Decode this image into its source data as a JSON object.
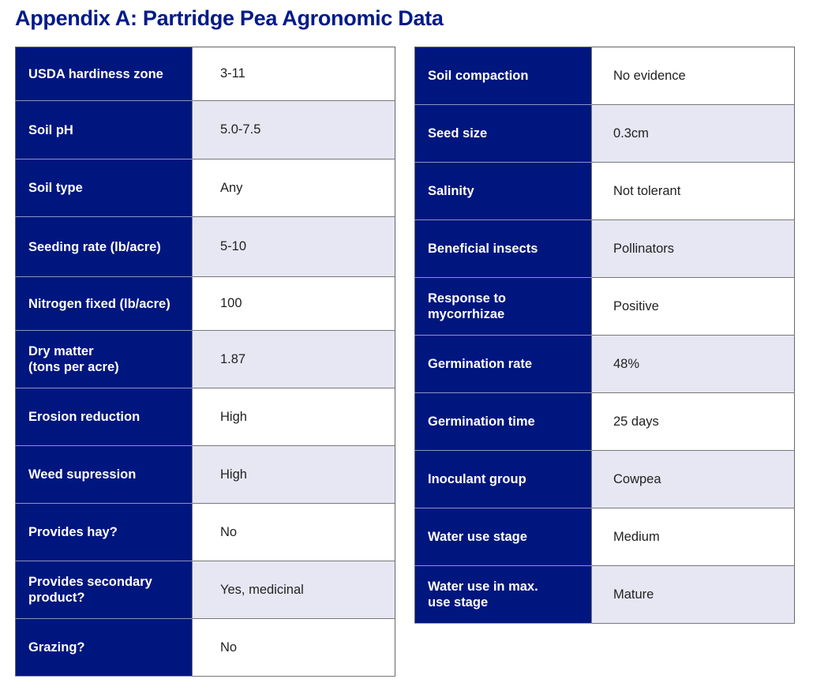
{
  "title": "Appendix A: Partridge Pea Agronomic Data",
  "colors": {
    "header_navy": "#00167f",
    "alt_row": "#e6e7f3",
    "title": "#001a8a"
  },
  "left_table": [
    {
      "label": "USDA hardiness zone",
      "value": "3-11"
    },
    {
      "label": "Soil pH",
      "value": "5.0-7.5"
    },
    {
      "label": "Soil type",
      "value": "Any"
    },
    {
      "label": "Seeding rate (lb/acre)",
      "value": "5-10"
    },
    {
      "label": "Nitrogen fixed (lb/acre)",
      "value": "100"
    },
    {
      "label": "Dry matter\n(tons per acre)",
      "value": "1.87"
    },
    {
      "label": "Erosion reduction",
      "value": "High"
    },
    {
      "label": "Weed supression",
      "value": "High"
    },
    {
      "label": "Provides hay?",
      "value": "No"
    },
    {
      "label": "Provides secondary product?",
      "value": "Yes, medicinal"
    },
    {
      "label": "Grazing?",
      "value": "No"
    }
  ],
  "right_table": [
    {
      "label": "Soil compaction",
      "value": "No evidence"
    },
    {
      "label": "Seed size",
      "value": "0.3cm"
    },
    {
      "label": "Salinity",
      "value": "Not tolerant"
    },
    {
      "label": "Beneficial insects",
      "value": "Pollinators"
    },
    {
      "label": "Response to mycorrhizae",
      "value": "Positive"
    },
    {
      "label": "Germination rate",
      "value": "48%"
    },
    {
      "label": "Germination time",
      "value": "25 days"
    },
    {
      "label": "Inoculant group",
      "value": "Cowpea"
    },
    {
      "label": "Water use stage",
      "value": "Medium"
    },
    {
      "label": "Water use in max. use stage",
      "value": "Mature"
    }
  ]
}
